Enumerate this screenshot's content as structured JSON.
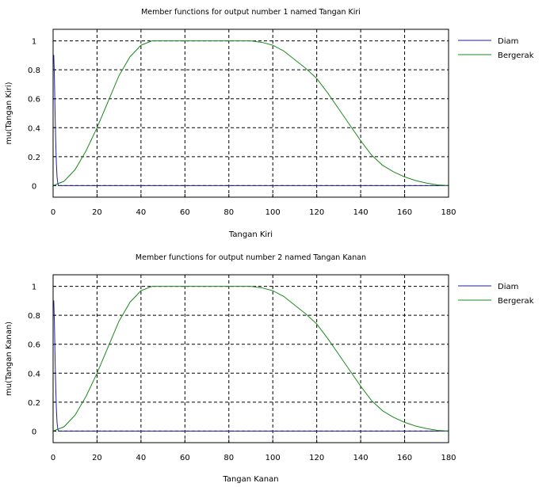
{
  "chart_data": [
    {
      "type": "line",
      "title": "Member functions for output number 1 named Tangan Kiri",
      "xlabel": "Tangan Kiri",
      "ylabel": "mu(Tangan Kiri)",
      "xlim": [
        0,
        180
      ],
      "ylim": [
        -0.08,
        1.08
      ],
      "xticks": [
        0,
        20,
        40,
        60,
        80,
        100,
        120,
        140,
        160,
        180
      ],
      "yticks": [
        0,
        0.2,
        0.4,
        0.6,
        0.8,
        1
      ],
      "grid": true,
      "legend_position": "right",
      "series": [
        {
          "name": "Diam",
          "color": "#1f1fa0",
          "x": [
            0,
            0.3,
            0.6,
            0.9,
            1.2,
            1.5,
            1.8,
            2.1,
            2.4,
            3,
            180
          ],
          "y": [
            0.9,
            0.9,
            0.75,
            0.5,
            0.3,
            0.15,
            0.06,
            0.02,
            0.0,
            0,
            0
          ]
        },
        {
          "name": "Bergerak",
          "color": "#1e8a1e",
          "x": [
            0,
            5,
            10,
            15,
            20,
            25,
            30,
            35,
            40,
            45,
            50,
            60,
            70,
            80,
            90,
            95,
            100,
            105,
            110,
            115,
            120,
            125,
            130,
            135,
            140,
            145,
            150,
            155,
            160,
            165,
            170,
            175,
            180
          ],
          "y": [
            0,
            0.03,
            0.11,
            0.24,
            0.4,
            0.58,
            0.76,
            0.89,
            0.97,
            1.0,
            1.0,
            1.0,
            1.0,
            1.0,
            1.0,
            0.99,
            0.97,
            0.93,
            0.87,
            0.81,
            0.74,
            0.64,
            0.53,
            0.42,
            0.31,
            0.21,
            0.14,
            0.095,
            0.06,
            0.035,
            0.017,
            0.005,
            0
          ]
        }
      ]
    },
    {
      "type": "line",
      "title": "Member functions for output number 2 named Tangan Kanan",
      "xlabel": "Tangan Kanan",
      "ylabel": "mu(Tangan Kanan)",
      "xlim": [
        0,
        180
      ],
      "ylim": [
        -0.08,
        1.08
      ],
      "xticks": [
        0,
        20,
        40,
        60,
        80,
        100,
        120,
        140,
        160,
        180
      ],
      "yticks": [
        0,
        0.2,
        0.4,
        0.6,
        0.8,
        1
      ],
      "grid": true,
      "legend_position": "right",
      "series": [
        {
          "name": "Diam",
          "color": "#1f1fa0",
          "x": [
            0,
            0.3,
            0.6,
            0.9,
            1.2,
            1.5,
            1.8,
            2.1,
            2.4,
            3,
            180
          ],
          "y": [
            0.9,
            0.9,
            0.75,
            0.5,
            0.3,
            0.15,
            0.06,
            0.02,
            0.0,
            0,
            0
          ]
        },
        {
          "name": "Bergerak",
          "color": "#1e8a1e",
          "x": [
            0,
            5,
            10,
            15,
            20,
            25,
            30,
            35,
            40,
            45,
            50,
            60,
            70,
            80,
            90,
            95,
            100,
            105,
            110,
            115,
            120,
            125,
            130,
            135,
            140,
            145,
            150,
            155,
            160,
            165,
            170,
            175,
            180
          ],
          "y": [
            0,
            0.03,
            0.11,
            0.24,
            0.4,
            0.58,
            0.76,
            0.89,
            0.97,
            1.0,
            1.0,
            1.0,
            1.0,
            1.0,
            1.0,
            0.99,
            0.97,
            0.93,
            0.87,
            0.81,
            0.74,
            0.64,
            0.53,
            0.42,
            0.31,
            0.21,
            0.14,
            0.095,
            0.06,
            0.035,
            0.017,
            0.005,
            0
          ]
        }
      ]
    }
  ]
}
